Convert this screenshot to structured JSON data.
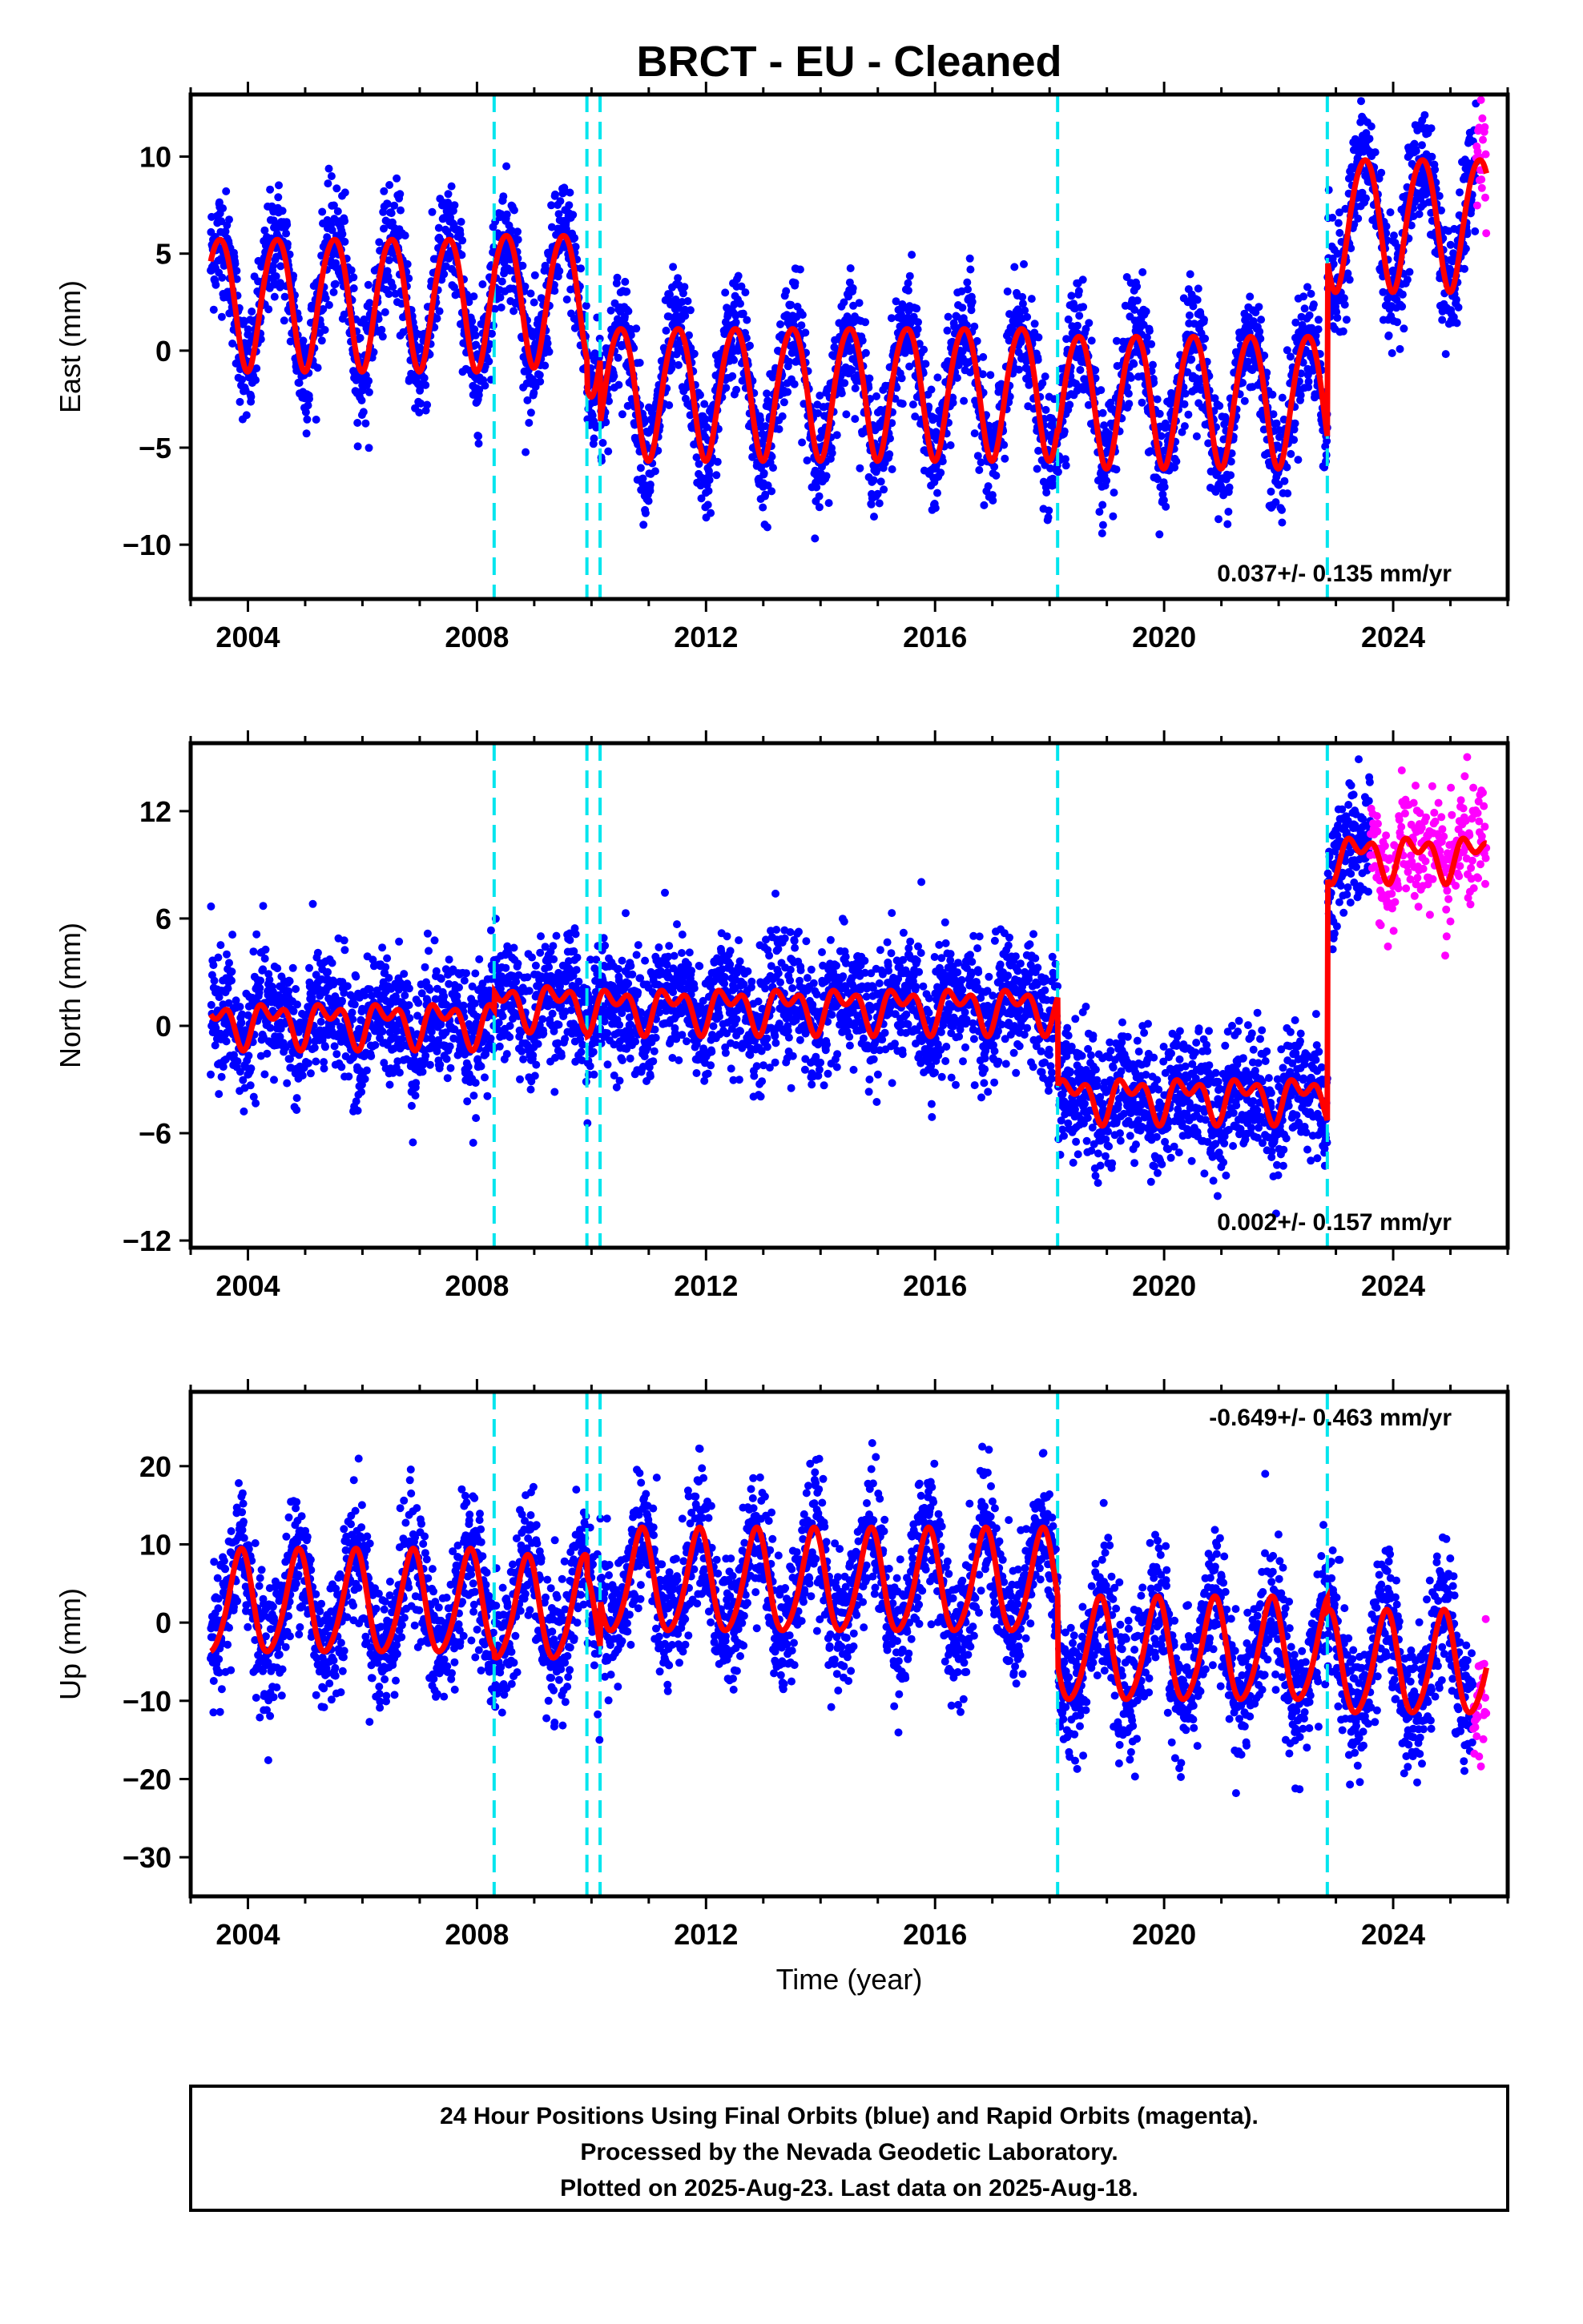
{
  "figure": {
    "title": "BRCT  - EU - Cleaned",
    "xlabel": "Time (year)",
    "caption": [
      "24 Hour Positions Using Final Orbits (blue) and Rapid Orbits (magenta).",
      "Processed by the Nevada Geodetic Laboratory.",
      "Plotted on 2025-Aug-23. Last data on 2025-Aug-18."
    ],
    "colors": {
      "final_points": "#0000ff",
      "rapid_points": "#ff00ff",
      "model_line": "#ff0000",
      "step_lines": "#00e5ee"
    }
  },
  "chart_data": [
    {
      "type": "scatter",
      "component": "East",
      "ylabel": "East (mm)",
      "rate_label": "0.037+/- 0.135 mm/yr",
      "xlim": [
        2003.0,
        2026.0
      ],
      "ylim": [
        -12.8,
        13.2
      ],
      "xticks": [
        2004,
        2008,
        2012,
        2016,
        2020,
        2024
      ],
      "yticks": [
        -10,
        -5,
        0,
        5,
        10
      ],
      "data_start": 2003.35,
      "final_end": 2025.45,
      "rapid_end": 2025.63,
      "step_epochs": [
        2008.3,
        2009.92,
        2010.15,
        2018.14,
        2022.85
      ],
      "model": {
        "segments": [
          {
            "from": 2003.35,
            "to": 2008.3,
            "offset": 2.6,
            "trend": 0.0
          },
          {
            "from": 2008.3,
            "to": 2009.92,
            "offset": 2.8,
            "trend": 0.0
          },
          {
            "from": 2009.92,
            "to": 2010.15,
            "offset": 1.3,
            "trend": 0.0
          },
          {
            "from": 2010.15,
            "to": 2018.14,
            "offset": -2.0,
            "trend": 0.0
          },
          {
            "from": 2018.14,
            "to": 2022.85,
            "offset": -2.4,
            "trend": 0.0
          },
          {
            "from": 2022.85,
            "to": 2025.63,
            "offset": 6.7,
            "trend": 0.0
          }
        ],
        "annual_amp": 3.4,
        "annual_phase": 0.25,
        "semiannual_amp": 0.3,
        "semiannual_phase": 0.1,
        "noise_sd": 1.5
      }
    },
    {
      "type": "scatter",
      "component": "North",
      "ylabel": "North (mm)",
      "rate_label": "0.002+/- 0.157 mm/yr",
      "xlim": [
        2003.0,
        2026.0
      ],
      "ylim": [
        -12.4,
        15.8
      ],
      "xticks": [
        2004,
        2008,
        2012,
        2016,
        2020,
        2024
      ],
      "yticks": [
        -12,
        -6,
        0,
        6,
        12
      ],
      "data_start": 2003.35,
      "final_end": 2023.6,
      "rapid_end": 2025.63,
      "step_epochs": [
        2008.3,
        2009.92,
        2010.15,
        2018.14,
        2022.85
      ],
      "model": {
        "segments": [
          {
            "from": 2003.35,
            "to": 2008.3,
            "offset": 0.2,
            "trend": 0.0
          },
          {
            "from": 2008.3,
            "to": 2009.92,
            "offset": 1.2,
            "trend": 0.0
          },
          {
            "from": 2009.92,
            "to": 2010.15,
            "offset": 1.0,
            "trend": 0.0
          },
          {
            "from": 2010.15,
            "to": 2018.14,
            "offset": 1.0,
            "trend": 0.0
          },
          {
            "from": 2018.14,
            "to": 2022.85,
            "offset": -4.0,
            "trend": 0.0
          },
          {
            "from": 2022.85,
            "to": 2025.63,
            "offset": 9.5,
            "trend": 0.0
          }
        ],
        "annual_amp": 0.9,
        "annual_phase": 0.15,
        "semiannual_amp": 0.7,
        "semiannual_phase": 0.05,
        "noise_sd": 1.7
      }
    },
    {
      "type": "scatter",
      "component": "Up",
      "ylabel": "Up (mm)",
      "rate_label": "-0.649+/- 0.463 mm/yr",
      "xlim": [
        2003.0,
        2026.0
      ],
      "ylim": [
        -35.0,
        29.5
      ],
      "xticks": [
        2004,
        2008,
        2012,
        2016,
        2020,
        2024
      ],
      "yticks": [
        -30,
        -20,
        -10,
        0,
        10,
        20
      ],
      "data_start": 2003.35,
      "final_end": 2025.4,
      "rapid_end": 2025.63,
      "step_epochs": [
        2008.3,
        2009.92,
        2010.15,
        2018.14,
        2022.85
      ],
      "model": {
        "segments": [
          {
            "from": 2003.35,
            "to": 2008.3,
            "offset": 2.3,
            "trend": 0.0
          },
          {
            "from": 2008.3,
            "to": 2009.92,
            "offset": 1.5,
            "trend": 0.0
          },
          {
            "from": 2009.92,
            "to": 2010.15,
            "offset": -1.0,
            "trend": 0.0
          },
          {
            "from": 2010.15,
            "to": 2018.14,
            "offset": 5.0,
            "trend": 0.0
          },
          {
            "from": 2018.14,
            "to": 2022.85,
            "offset": -3.8,
            "trend": 0.0
          },
          {
            "from": 2022.85,
            "to": 2025.63,
            "offset": -5.5,
            "trend": 0.0
          }
        ],
        "annual_amp": 6.5,
        "annual_phase": 0.62,
        "semiannual_amp": 0.8,
        "semiannual_phase": 0.3,
        "noise_sd": 4.2
      }
    }
  ]
}
